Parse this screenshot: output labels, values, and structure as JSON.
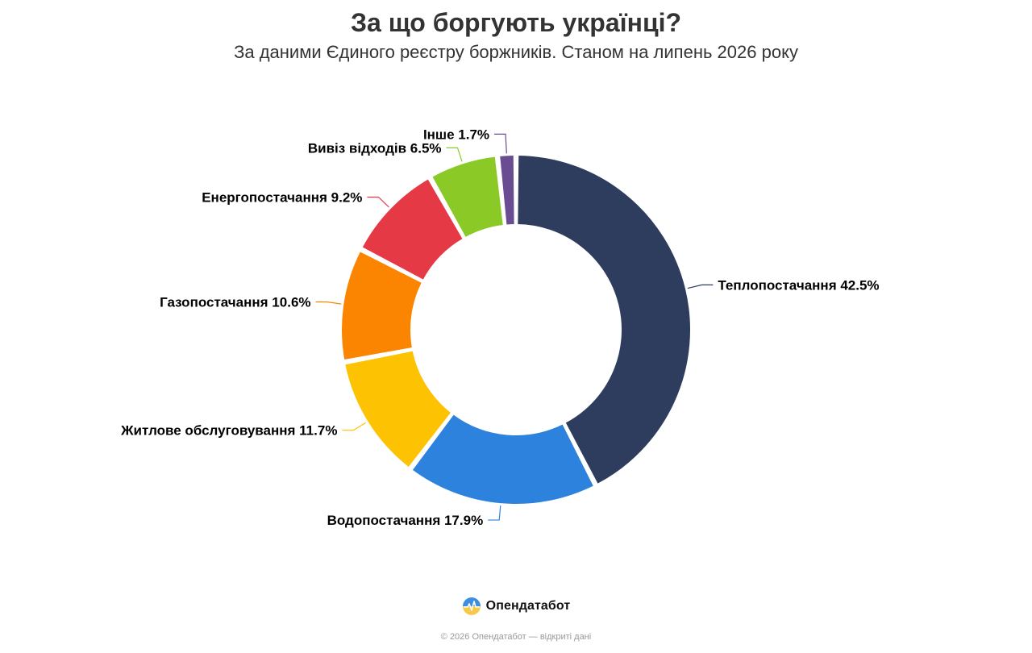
{
  "header": {
    "title": "За що боргують українці?",
    "subtitle": "За даними Єдиного реєстру боржників. Станом на липень 2026 року"
  },
  "chart_data": {
    "type": "pie",
    "variant": "donut",
    "title": "За що боргують українці?",
    "subtitle": "За даними Єдиного реєстру боржників. Станом на липень 2026 року",
    "unit": "%",
    "start_angle_deg": 0,
    "direction": "clockwise",
    "legend": "none",
    "slices": [
      {
        "label": "Теплопостачання",
        "value": 42.5,
        "display": "Теплопостачання 42.5%",
        "color": "#2e3d5e"
      },
      {
        "label": "Водопостачання",
        "value": 17.9,
        "display": "Водопостачання 17.9%",
        "color": "#2c82dc"
      },
      {
        "label": "Житлове обслуговування",
        "value": 11.7,
        "display": "Житлове обслуговування 11.7%",
        "color": "#fdc201"
      },
      {
        "label": "Газопостачання",
        "value": 10.6,
        "display": "Газопостачання 10.6%",
        "color": "#fb8500"
      },
      {
        "label": "Енергопостачання",
        "value": 9.2,
        "display": "Енергопостачання 9.2%",
        "color": "#e63946"
      },
      {
        "label": "Вивіз відходів",
        "value": 6.5,
        "display": "Вивіз відходів 6.5%",
        "color": "#8ac926"
      },
      {
        "label": "Інше",
        "value": 1.7,
        "display": "Інше 1.7%",
        "color": "#6a4c93"
      }
    ]
  },
  "footer": {
    "brand": "Опендатабот",
    "logo_icon": "opendatabot-logo-icon",
    "copyright": "© 2026 Опендатабот — відкриті дані"
  }
}
